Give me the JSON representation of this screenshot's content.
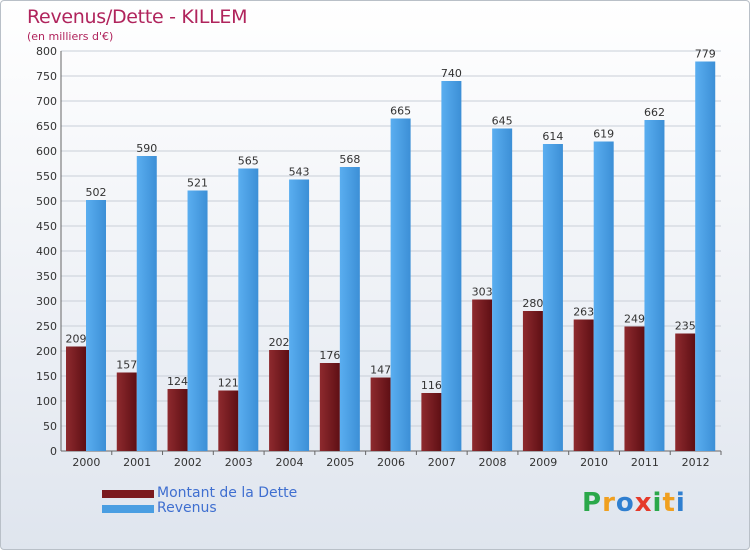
{
  "chart_data": {
    "type": "bar",
    "title": "Revenus/Dette - KILLEM",
    "subtitle": "(en milliers d'€)",
    "categories": [
      "2000",
      "2001",
      "2002",
      "2003",
      "2004",
      "2005",
      "2006",
      "2007",
      "2008",
      "2009",
      "2010",
      "2011",
      "2012"
    ],
    "series": [
      {
        "name": "Montant de la Dette",
        "color": "#7b1a1f",
        "values": [
          209,
          157,
          124,
          121,
          202,
          176,
          147,
          116,
          303,
          280,
          263,
          249,
          235
        ]
      },
      {
        "name": "Revenus",
        "color": "#4a9ee2",
        "values": [
          502,
          590,
          521,
          565,
          543,
          568,
          665,
          740,
          645,
          614,
          619,
          662,
          779
        ]
      }
    ],
    "ylim": [
      0,
      800
    ],
    "yticks": [
      0,
      50,
      100,
      150,
      200,
      250,
      300,
      350,
      400,
      450,
      500,
      550,
      600,
      650,
      700,
      750,
      800
    ],
    "grid": true,
    "legend_position": "bottom-left"
  },
  "logo": {
    "letters": [
      "P",
      "r",
      "o",
      "x",
      "i",
      "t",
      "i"
    ],
    "colors": [
      "#2aa84a",
      "#f0a020",
      "#2f7fd0",
      "#e53a2a",
      "#2aa84a",
      "#f0a020",
      "#2f7fd0"
    ]
  }
}
